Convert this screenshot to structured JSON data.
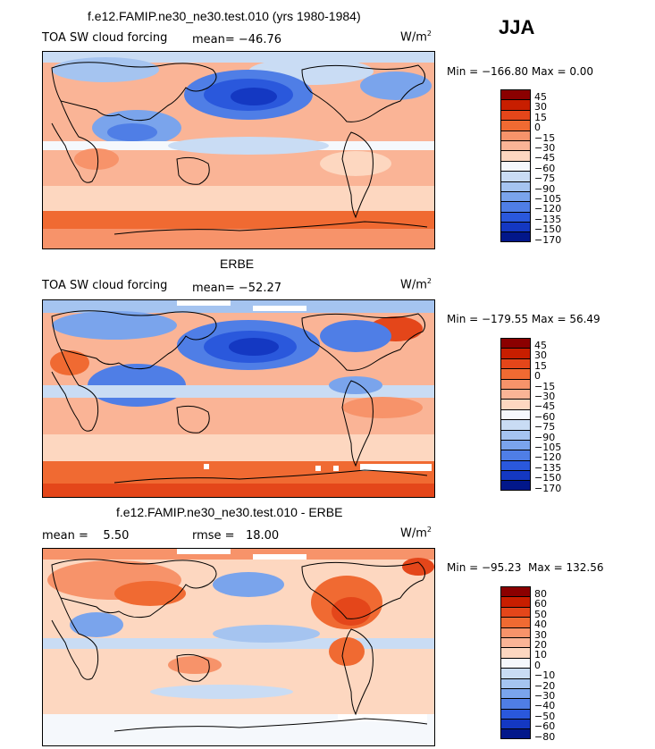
{
  "season": "JJA",
  "chart_data": [
    {
      "type": "heatmap",
      "title": "f.e12.FAMIP.ne30_ne30.test.010 (yrs 1980-1984)",
      "variable": "TOA SW cloud forcing",
      "mean_text": "mean= −46.76",
      "units_base": "W/m",
      "units_exp": "2",
      "minmax": "Min = −166.80  Max =    0.00",
      "colorbar_levels": [
        "45",
        "30",
        "15",
        "0",
        "−15",
        "−30",
        "−45",
        "−60",
        "−75",
        "−90",
        "−105",
        "−120",
        "−135",
        "−150",
        "−170"
      ],
      "colorbar_colors": [
        "#8b0000",
        "#c81e00",
        "#e4461a",
        "#f06a32",
        "#f7936a",
        "#fab496",
        "#fdd7c0",
        "#f5f8fc",
        "#c9dcf4",
        "#a5c4f0",
        "#7aa4ec",
        "#4f7ee6",
        "#2a58dc",
        "#1438c2",
        "#02178a"
      ]
    },
    {
      "type": "heatmap",
      "title": "ERBE",
      "variable": "TOA SW cloud forcing",
      "mean_text": "mean= −52.27",
      "units_base": "W/m",
      "units_exp": "2",
      "minmax": "Min = −179.55  Max =   56.49",
      "colorbar_levels": [
        "45",
        "30",
        "15",
        "0",
        "−15",
        "−30",
        "−45",
        "−60",
        "−75",
        "−90",
        "−105",
        "−120",
        "−135",
        "−150",
        "−170"
      ],
      "colorbar_colors": [
        "#8b0000",
        "#c81e00",
        "#e4461a",
        "#f06a32",
        "#f7936a",
        "#fab496",
        "#fdd7c0",
        "#f5f8fc",
        "#c9dcf4",
        "#a5c4f0",
        "#7aa4ec",
        "#4f7ee6",
        "#2a58dc",
        "#1438c2",
        "#02178a"
      ]
    },
    {
      "type": "heatmap",
      "title": "f.e12.FAMIP.ne30_ne30.test.010 - ERBE",
      "mean_text": "mean =    5.50",
      "rmse_text": "rmse =   18.00",
      "units_base": "W/m",
      "units_exp": "2",
      "minmax": "Min = −95.23  Max = 132.56",
      "colorbar_levels": [
        "80",
        "60",
        "50",
        "40",
        "30",
        "20",
        "10",
        "0",
        "−10",
        "−20",
        "−30",
        "−40",
        "−50",
        "−60",
        "−80"
      ],
      "colorbar_colors": [
        "#8b0000",
        "#c81e00",
        "#e4461a",
        "#f06a32",
        "#f7936a",
        "#fab496",
        "#fdd7c0",
        "#f5f8fc",
        "#c9dcf4",
        "#a5c4f0",
        "#7aa4ec",
        "#4f7ee6",
        "#2a58dc",
        "#1438c2",
        "#02178a"
      ]
    }
  ]
}
